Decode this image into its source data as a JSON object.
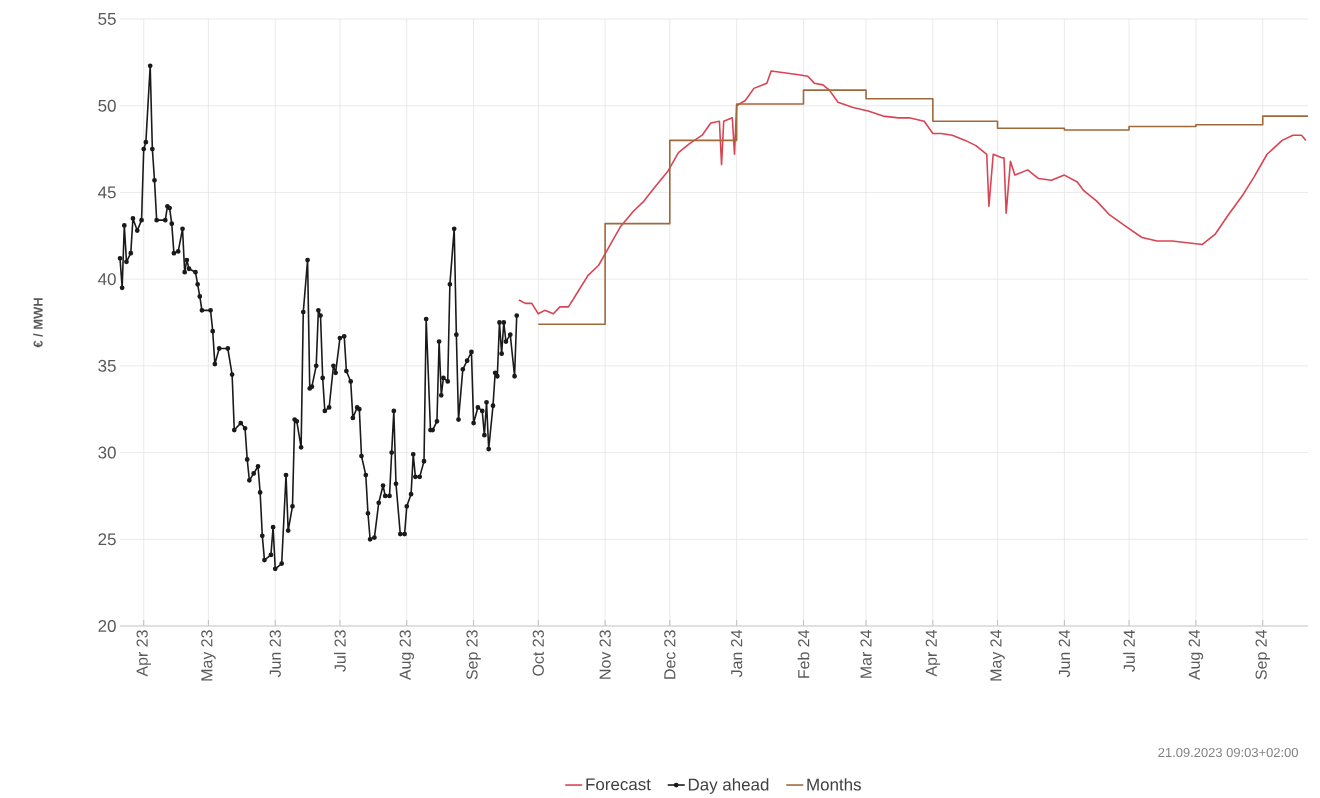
{
  "chart_data": {
    "type": "line",
    "ylabel": "€ / MWH",
    "xlim": [
      "2023-03-21",
      "2024-09-22"
    ],
    "ylim": [
      20,
      55
    ],
    "yticks": [
      20,
      25,
      30,
      35,
      40,
      45,
      50,
      55
    ],
    "xticks": [
      {
        "value": "2023-04-01",
        "label": "Apr 23"
      },
      {
        "value": "2023-05-01",
        "label": "May 23"
      },
      {
        "value": "2023-06-01",
        "label": "Jun 23"
      },
      {
        "value": "2023-07-01",
        "label": "Jul 23"
      },
      {
        "value": "2023-08-01",
        "label": "Aug 23"
      },
      {
        "value": "2023-09-01",
        "label": "Sep 23"
      },
      {
        "value": "2023-10-01",
        "label": "Oct 23"
      },
      {
        "value": "2023-11-01",
        "label": "Nov 23"
      },
      {
        "value": "2023-12-01",
        "label": "Dec 23"
      },
      {
        "value": "2024-01-01",
        "label": "Jan 24"
      },
      {
        "value": "2024-02-01",
        "label": "Feb 24"
      },
      {
        "value": "2024-03-01",
        "label": "Mar 24"
      },
      {
        "value": "2024-04-01",
        "label": "Apr 24"
      },
      {
        "value": "2024-05-01",
        "label": "May 24"
      },
      {
        "value": "2024-06-01",
        "label": "Jun 24"
      },
      {
        "value": "2024-07-01",
        "label": "Jul 24"
      },
      {
        "value": "2024-08-01",
        "label": "Aug 24"
      },
      {
        "value": "2024-09-01",
        "label": "Sep 24"
      }
    ],
    "grid": true,
    "legend": "bottom",
    "annotations": [
      "21.09.2023 09:03+02:00"
    ],
    "series": [
      {
        "name": "Forecast",
        "type": "line",
        "color": "#d94452",
        "marker": "none",
        "x": [
          "2023-09-22",
          "2023-09-25",
          "2023-09-28",
          "2023-10-01",
          "2023-10-04",
          "2023-10-08",
          "2023-10-11",
          "2023-10-15",
          "2023-10-19",
          "2023-10-24",
          "2023-10-29",
          "2023-11-03",
          "2023-11-08",
          "2023-11-14",
          "2023-11-19",
          "2023-11-24",
          "2023-11-30",
          "2023-12-05",
          "2023-12-10",
          "2023-12-16",
          "2023-12-20",
          "2023-12-24",
          "2023-12-25",
          "2023-12-26",
          "2023-12-30",
          "2023-12-31",
          "2024-01-01",
          "2024-01-05",
          "2024-01-09",
          "2024-01-15",
          "2024-01-17",
          "2024-01-23",
          "2024-01-29",
          "2024-02-03",
          "2024-02-06",
          "2024-02-10",
          "2024-02-13",
          "2024-02-17",
          "2024-02-24",
          "2024-03-02",
          "2024-03-09",
          "2024-03-16",
          "2024-03-21",
          "2024-03-28",
          "2024-04-01",
          "2024-04-05",
          "2024-04-10",
          "2024-04-16",
          "2024-04-21",
          "2024-04-26",
          "2024-04-27",
          "2024-04-29",
          "2024-05-03",
          "2024-05-04",
          "2024-05-05",
          "2024-05-07",
          "2024-05-09",
          "2024-05-15",
          "2024-05-20",
          "2024-05-26",
          "2024-06-01",
          "2024-06-07",
          "2024-06-10",
          "2024-06-16",
          "2024-06-22",
          "2024-06-30",
          "2024-07-07",
          "2024-07-14",
          "2024-07-21",
          "2024-07-28",
          "2024-08-04",
          "2024-08-10",
          "2024-08-16",
          "2024-08-23",
          "2024-08-28",
          "2024-09-03",
          "2024-09-10",
          "2024-09-15",
          "2024-09-19",
          "2024-09-21"
        ],
        "values": [
          38.8,
          38.6,
          38.6,
          38.0,
          38.2,
          38.0,
          38.4,
          38.4,
          39.2,
          40.2,
          40.8,
          41.9,
          43.0,
          43.9,
          44.5,
          45.3,
          46.2,
          47.3,
          47.8,
          48.3,
          49.0,
          49.1,
          46.6,
          49.1,
          49.3,
          47.2,
          50.0,
          50.3,
          51.0,
          51.3,
          52.0,
          51.9,
          51.8,
          51.7,
          51.3,
          51.2,
          50.9,
          50.2,
          49.9,
          49.7,
          49.4,
          49.3,
          49.3,
          49.1,
          48.4,
          48.4,
          48.3,
          48.0,
          47.7,
          47.2,
          44.2,
          47.2,
          47.0,
          47.0,
          43.8,
          46.8,
          46.0,
          46.3,
          45.8,
          45.7,
          46.0,
          45.6,
          45.1,
          44.5,
          43.7,
          43.0,
          42.4,
          42.2,
          42.2,
          42.1,
          42.0,
          42.6,
          43.7,
          44.9,
          45.9,
          47.2,
          48.0,
          48.3,
          48.3,
          48.0
        ]
      },
      {
        "name": "Day ahead",
        "type": "line",
        "color": "#1a1a1a",
        "marker": "circle",
        "x": [
          "2023-03-21",
          "2023-03-22",
          "2023-03-23",
          "2023-03-24",
          "2023-03-26",
          "2023-03-27",
          "2023-03-29",
          "2023-03-31",
          "2023-04-01",
          "2023-04-02",
          "2023-04-04",
          "2023-04-05",
          "2023-04-06",
          "2023-04-07",
          "2023-04-11",
          "2023-04-12",
          "2023-04-13",
          "2023-04-14",
          "2023-04-15",
          "2023-04-17",
          "2023-04-19",
          "2023-04-20",
          "2023-04-21",
          "2023-04-22",
          "2023-04-25",
          "2023-04-26",
          "2023-04-27",
          "2023-04-28",
          "2023-05-02",
          "2023-05-03",
          "2023-05-04",
          "2023-05-06",
          "2023-05-10",
          "2023-05-12",
          "2023-05-13",
          "2023-05-16",
          "2023-05-18",
          "2023-05-19",
          "2023-05-20",
          "2023-05-22",
          "2023-05-24",
          "2023-05-25",
          "2023-05-26",
          "2023-05-27",
          "2023-05-30",
          "2023-05-31",
          "2023-06-01",
          "2023-06-04",
          "2023-06-06",
          "2023-06-07",
          "2023-06-09",
          "2023-06-10",
          "2023-06-11",
          "2023-06-13",
          "2023-06-14",
          "2023-06-16",
          "2023-06-17",
          "2023-06-18",
          "2023-06-20",
          "2023-06-21",
          "2023-06-22",
          "2023-06-23",
          "2023-06-24",
          "2023-06-26",
          "2023-06-28",
          "2023-06-29",
          "2023-07-01",
          "2023-07-03",
          "2023-07-04",
          "2023-07-06",
          "2023-07-07",
          "2023-07-09",
          "2023-07-10",
          "2023-07-11",
          "2023-07-13",
          "2023-07-14",
          "2023-07-15",
          "2023-07-17",
          "2023-07-19",
          "2023-07-21",
          "2023-07-22",
          "2023-07-24",
          "2023-07-25",
          "2023-07-26",
          "2023-07-27",
          "2023-07-29",
          "2023-07-31",
          "2023-08-01",
          "2023-08-03",
          "2023-08-04",
          "2023-08-05",
          "2023-08-07",
          "2023-08-09",
          "2023-08-10",
          "2023-08-12",
          "2023-08-13",
          "2023-08-15",
          "2023-08-16",
          "2023-08-17",
          "2023-08-18",
          "2023-08-20",
          "2023-08-21",
          "2023-08-23",
          "2023-08-24",
          "2023-08-25",
          "2023-08-27",
          "2023-08-29",
          "2023-08-31",
          "2023-09-01",
          "2023-09-03",
          "2023-09-05",
          "2023-09-06",
          "2023-09-07",
          "2023-09-08",
          "2023-09-10",
          "2023-09-11",
          "2023-09-12",
          "2023-09-13",
          "2023-09-14",
          "2023-09-15",
          "2023-09-16",
          "2023-09-18",
          "2023-09-20",
          "2023-09-21"
        ],
        "values": [
          41.2,
          39.5,
          43.1,
          41.0,
          41.5,
          43.5,
          42.8,
          43.4,
          47.5,
          47.9,
          52.3,
          47.5,
          45.7,
          43.4,
          43.4,
          44.2,
          44.1,
          43.2,
          41.5,
          41.6,
          42.9,
          40.4,
          41.1,
          40.6,
          40.4,
          39.7,
          39.0,
          38.2,
          38.2,
          37.0,
          35.1,
          36.0,
          36.0,
          34.5,
          31.3,
          31.7,
          31.4,
          29.6,
          28.4,
          28.8,
          29.2,
          27.7,
          25.2,
          23.8,
          24.1,
          25.7,
          23.3,
          23.6,
          28.7,
          25.5,
          26.9,
          31.9,
          31.8,
          30.3,
          38.1,
          41.1,
          33.7,
          33.8,
          35.0,
          38.2,
          37.9,
          34.3,
          32.4,
          32.6,
          35.0,
          34.6,
          36.6,
          36.7,
          34.7,
          34.1,
          32.0,
          32.6,
          32.5,
          29.8,
          28.7,
          26.5,
          25.0,
          25.1,
          27.1,
          28.1,
          27.5,
          27.5,
          30.0,
          32.4,
          28.2,
          25.3,
          25.3,
          26.9,
          27.6,
          29.9,
          28.6,
          28.6,
          29.5,
          37.7,
          31.3,
          31.3,
          31.8,
          36.4,
          33.3,
          34.3,
          34.1,
          39.7,
          42.9,
          36.8,
          31.9,
          34.8,
          35.3,
          35.8,
          31.7,
          32.6,
          32.4,
          31.0,
          32.9,
          30.2,
          32.7,
          34.6,
          34.4,
          37.5,
          35.7,
          37.5,
          36.4,
          36.8,
          34.4,
          37.9
        ]
      },
      {
        "name": "Months",
        "type": "step",
        "color": "#a0693a",
        "marker": "none",
        "x": [
          "2023-10-01",
          "2023-11-01",
          "2023-12-01",
          "2024-01-01",
          "2024-02-01",
          "2024-03-01",
          "2024-04-01",
          "2024-05-01",
          "2024-06-01",
          "2024-07-01",
          "2024-08-01",
          "2024-09-01",
          "2024-09-22"
        ],
        "values": [
          37.4,
          43.2,
          48.0,
          50.1,
          50.9,
          50.4,
          49.1,
          48.7,
          48.6,
          48.8,
          48.9,
          49.4,
          49.4
        ]
      }
    ]
  }
}
